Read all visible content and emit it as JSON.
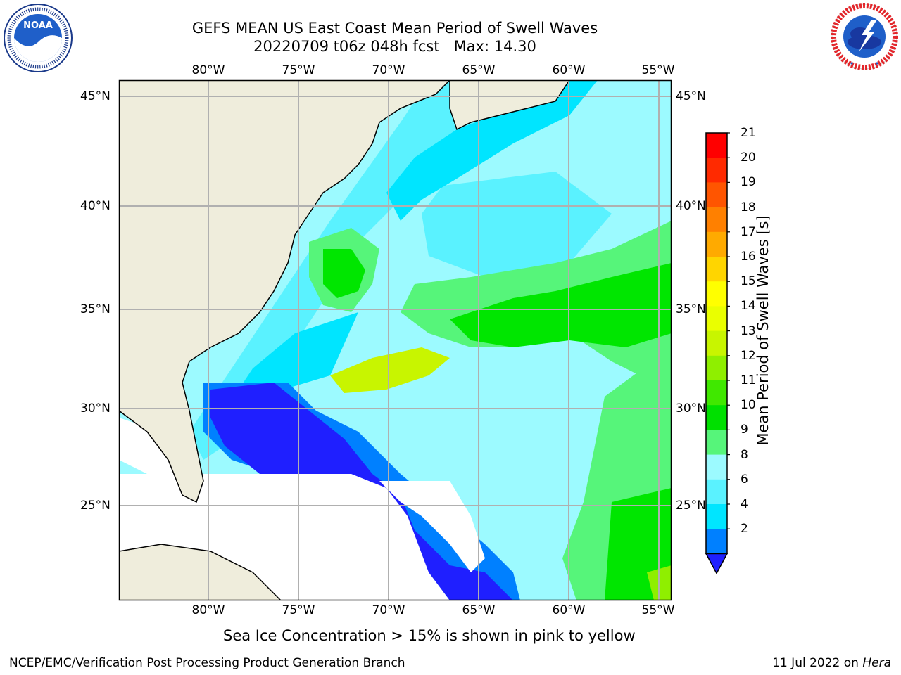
{
  "header": {
    "title_line1": "GEFS MEAN US East Coast Mean Period of Swell Waves",
    "title_line2": "20220709 t06z 048h fcst   Max: 14.30"
  },
  "logos": {
    "left": {
      "name": "NOAA",
      "ring_text": "NATIONAL OCEANIC AND ATMOSPHERIC ADMINISTRATION",
      "bottom_text": "U.S. DEPARTMENT OF COMMERCE"
    },
    "right": {
      "ring_text": "NATIONAL WEATHER SERVICE"
    }
  },
  "map": {
    "lon_labels": [
      "80°W",
      "75°W",
      "70°W",
      "65°W",
      "60°W",
      "55°W"
    ],
    "lat_labels": [
      "45°N",
      "40°N",
      "35°N",
      "30°N",
      "25°N"
    ],
    "colors": {
      "land": "#efeddc",
      "ocean_deep_blue": "#1f1fff",
      "ocean_blue": "#0080ff",
      "ocean_cyan": "#00e5ff",
      "ocean_lightcyan": "#5af2ff",
      "ocean_pale": "#9cfaff",
      "green_light": "#56f57a",
      "green": "#00e600",
      "yellowgreen": "#c8f500",
      "grid": "#b0b0b0"
    }
  },
  "colorbar": {
    "label": "Mean Period of Swell Waves [s]",
    "ticks": [
      "21",
      "20",
      "19",
      "18",
      "17",
      "16",
      "15",
      "14",
      "13",
      "12",
      "11",
      "10",
      "9",
      "8",
      "6",
      "4",
      "2"
    ],
    "colors": [
      "#ff0000",
      "#ff2a00",
      "#ff5500",
      "#ff8000",
      "#ffaa00",
      "#ffd500",
      "#ffff00",
      "#eaff00",
      "#c8f500",
      "#8fef00",
      "#40e800",
      "#00e000",
      "#56f57a",
      "#9cfaff",
      "#5af2ff",
      "#00e5ff",
      "#0080ff"
    ],
    "extend_color": "#1f1fff"
  },
  "footer": {
    "note": "Sea Ice Concentration > 15% is shown in pink to yellow",
    "left": "NCEP/EMC/Verification Post Processing Product Generation Branch",
    "right_date": "11 Jul 2022 on ",
    "right_host": "Hera"
  }
}
